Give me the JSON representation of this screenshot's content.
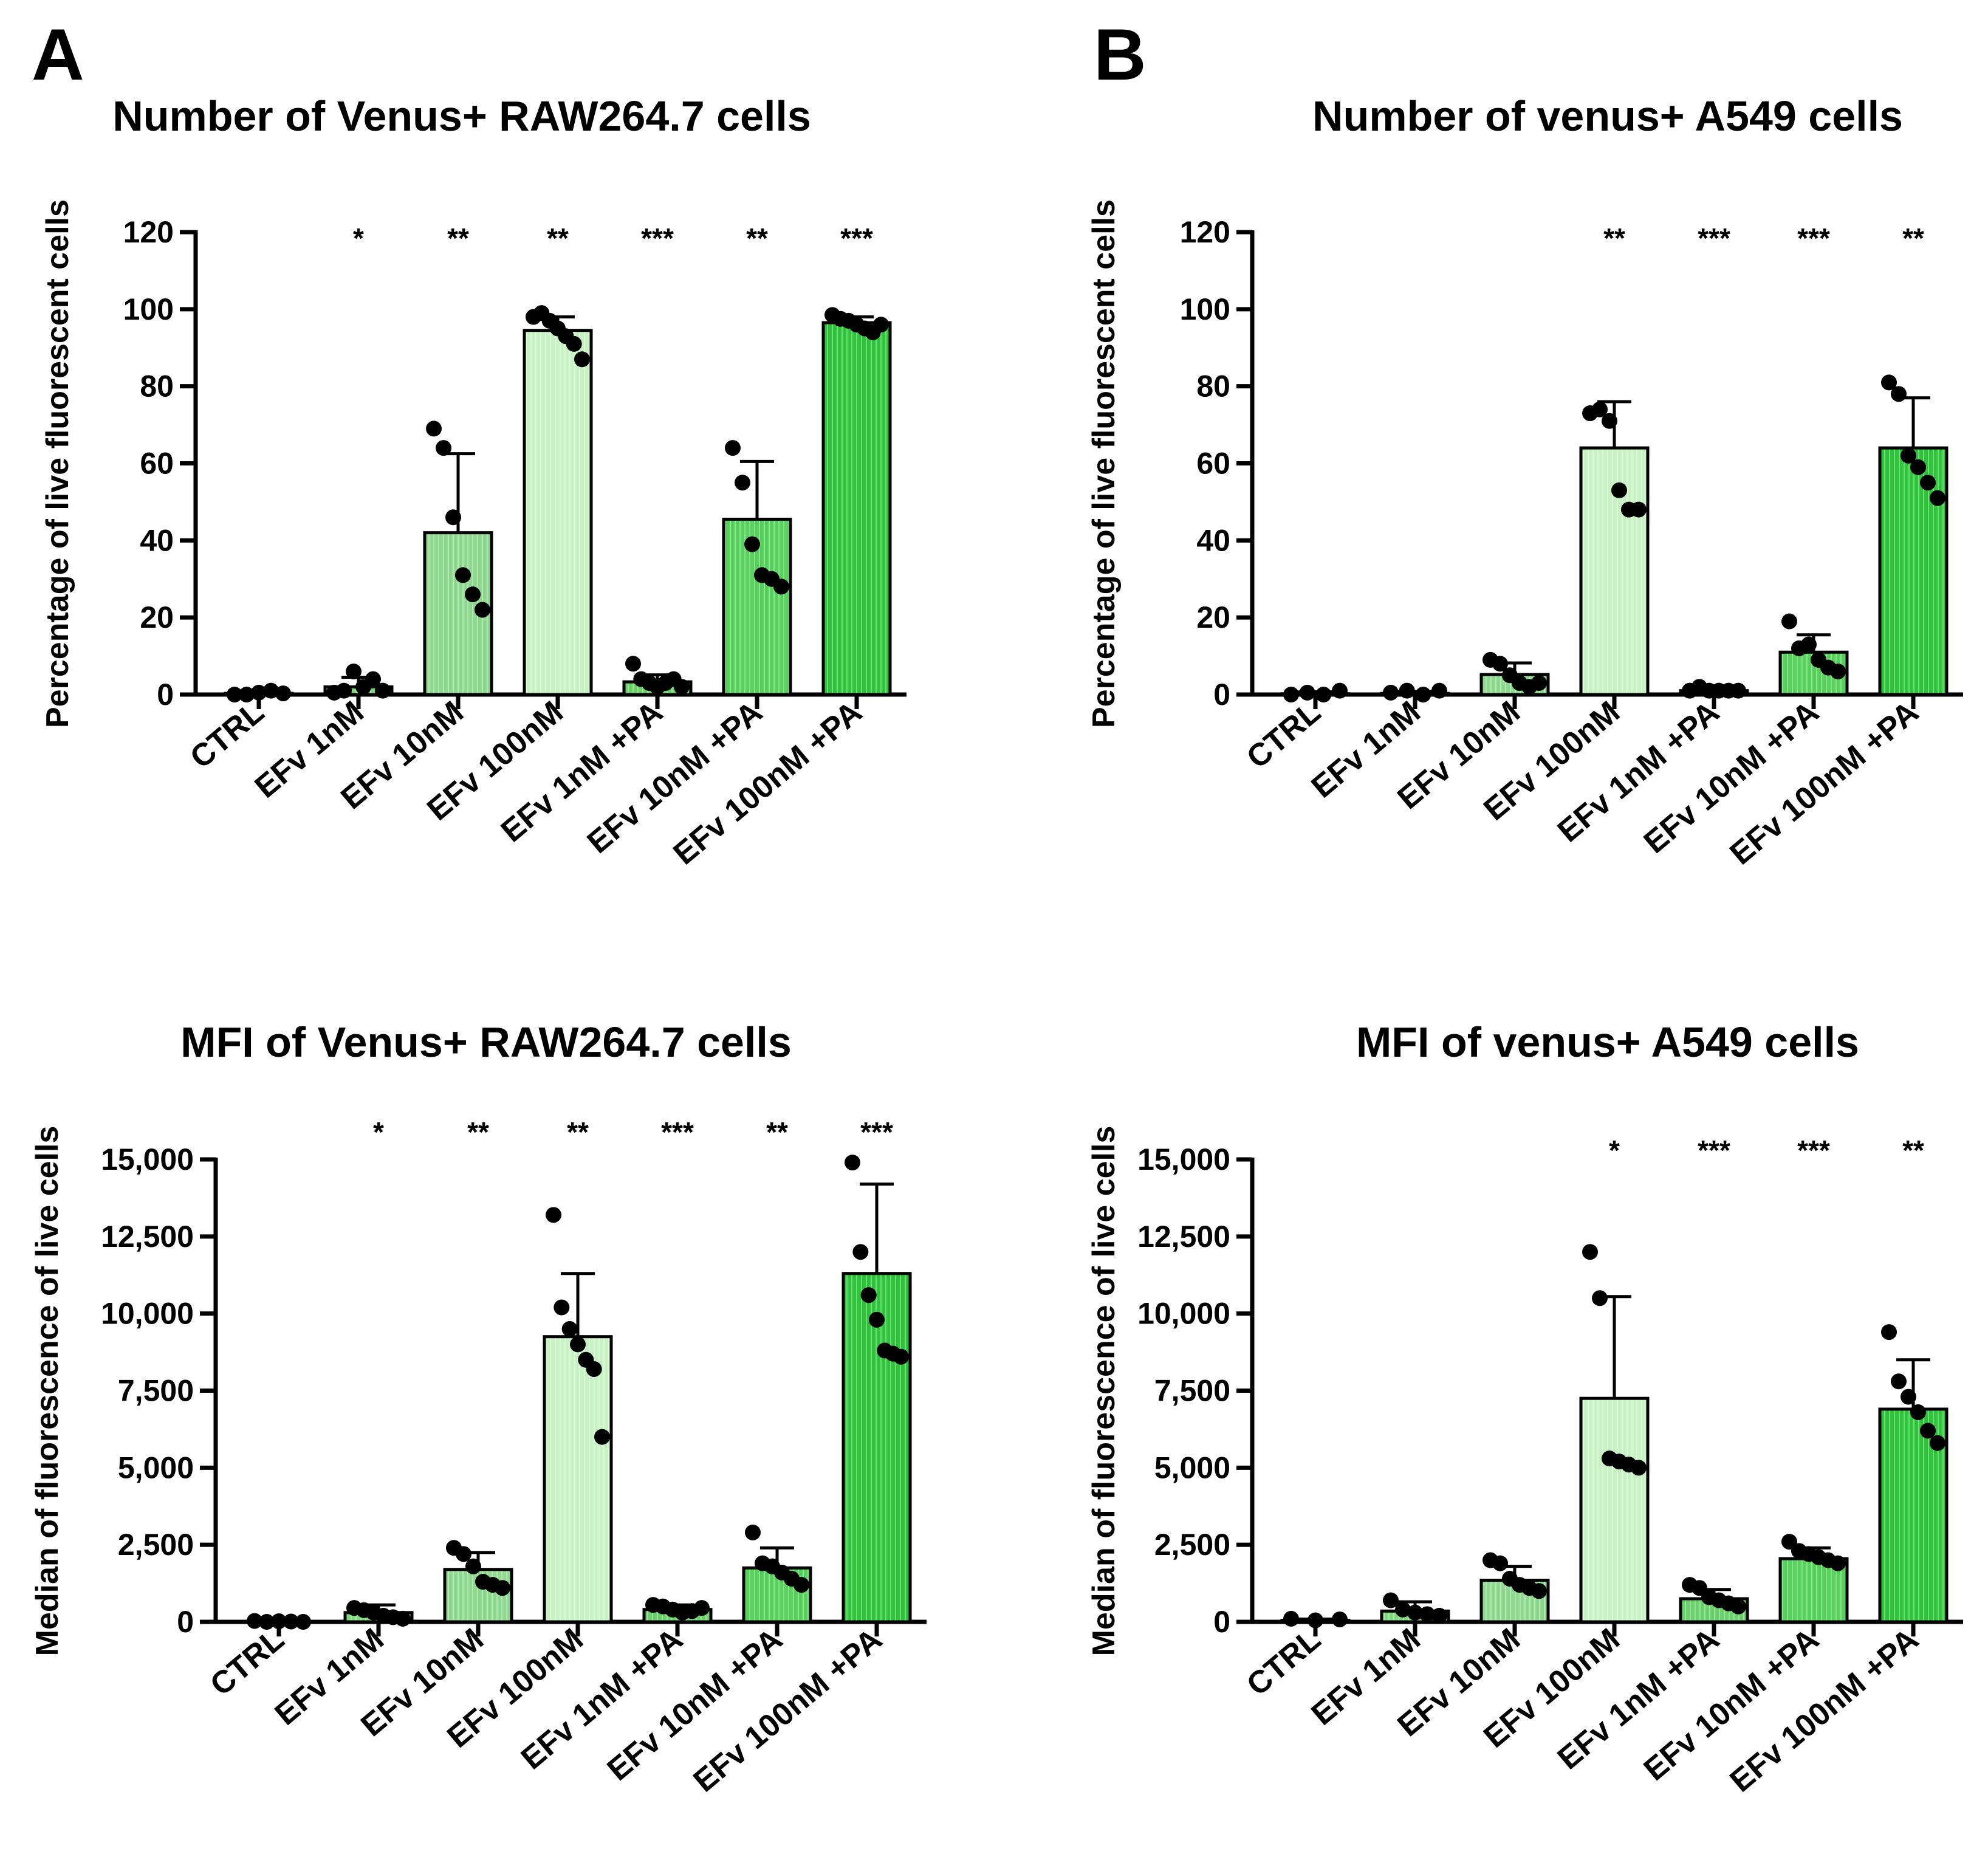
{
  "panels": [
    {
      "letter": "A"
    },
    {
      "letter": "B"
    }
  ],
  "colors": {
    "light": "#c9f2c4",
    "medium": "#8fd88f",
    "bright": "#55d05a",
    "dark": "#2ec43a",
    "axis": "#000000"
  },
  "chart_data": [
    {
      "type": "bar",
      "panel": "A",
      "title": "Number of Venus+ RAW264.7 cells",
      "ylabel": "Percentage of live fluorescent cells",
      "xlabel": "",
      "ylim": [
        0,
        120
      ],
      "yticks": [
        0,
        20,
        40,
        60,
        80,
        100,
        120
      ],
      "ytick_labels": [
        "0",
        "20",
        "40",
        "60",
        "80",
        "100",
        "120"
      ],
      "categories": [
        "CTRL",
        "EFv 1nM",
        "EFv 10nM",
        "EFv 100nM",
        "EFv 1nM +PA",
        "EFv 10nM +PA",
        "EFv 100nM +PA"
      ],
      "values": [
        0.3,
        2.0,
        42,
        94.5,
        3.3,
        45.5,
        96.5
      ],
      "error": [
        0.5,
        2.5,
        20.5,
        3.5,
        1.8,
        15,
        1.5
      ],
      "points": [
        [
          0,
          0,
          0.5,
          1,
          0.3
        ],
        [
          0.5,
          1,
          6,
          2,
          4,
          1
        ],
        [
          69,
          64,
          46,
          31,
          26,
          22
        ],
        [
          98,
          99,
          97,
          95,
          93,
          91,
          87
        ],
        [
          8,
          4,
          3,
          2,
          3,
          4,
          2
        ],
        [
          64,
          55,
          39,
          31,
          30,
          28
        ],
        [
          98.5,
          97.5,
          97,
          96,
          95,
          94,
          96
        ]
      ],
      "significance": [
        "",
        "*",
        "**",
        "**",
        "***",
        "**",
        "***"
      ],
      "fill_colors": [
        "#9ee09a",
        "#7fd87e",
        "#8fd88f",
        "#c9f2c4",
        "#69d06a",
        "#55d05a",
        "#2ec43a"
      ]
    },
    {
      "type": "bar",
      "panel": "B",
      "title": "Number of venus+ A549 cells",
      "ylabel": "Percentage of live fluorescent cells",
      "xlabel": "",
      "ylim": [
        0,
        120
      ],
      "yticks": [
        0,
        20,
        40,
        60,
        80,
        100,
        120
      ],
      "ytick_labels": [
        "0",
        "20",
        "40",
        "60",
        "80",
        "100",
        "120"
      ],
      "categories": [
        "CTRL",
        "EFv 1nM",
        "EFv 10nM",
        "EFv 100nM",
        "EFv 1nM +PA",
        "EFv 10nM +PA",
        "EFv 100nM +PA"
      ],
      "values": [
        0.2,
        0.3,
        5.2,
        64,
        1.0,
        11,
        64
      ],
      "error": [
        0.5,
        0.5,
        3,
        12,
        0.5,
        4.5,
        13
      ],
      "points": [
        [
          0,
          0.5,
          0,
          1
        ],
        [
          0.5,
          1,
          0,
          1
        ],
        [
          9,
          8,
          5,
          3,
          2,
          3
        ],
        [
          73,
          74,
          71,
          53,
          48,
          48
        ],
        [
          1,
          2,
          1,
          1,
          1,
          1
        ],
        [
          19,
          12,
          13,
          9,
          7,
          6
        ],
        [
          81,
          78,
          62,
          59,
          55,
          51
        ]
      ],
      "significance": [
        "",
        "",
        "",
        "**",
        "***",
        "***",
        "**"
      ],
      "fill_colors": [
        "#9ee09a",
        "#7fd87e",
        "#8fd88f",
        "#c9f2c4",
        "#69d06a",
        "#55d05a",
        "#2ec43a"
      ]
    },
    {
      "type": "bar",
      "panel": "A",
      "title": "MFI of Venus+ RAW264.7 cells",
      "ylabel": "Median of fluorescence of live cells",
      "xlabel": "",
      "ylim": [
        0,
        15000
      ],
      "yticks": [
        0,
        2500,
        5000,
        7500,
        10000,
        12500,
        15000
      ],
      "ytick_labels": [
        "0",
        "2,500",
        "5,000",
        "7,500",
        "10,000",
        "12,500",
        "15,000"
      ],
      "categories": [
        "CTRL",
        "EFv 1nM",
        "EFv 10nM",
        "EFv 100nM",
        "EFv 1nM +PA",
        "EFv 10nM +PA",
        "EFv 100nM +PA"
      ],
      "values": [
        0,
        300,
        1700,
        9250,
        400,
        1750,
        11300
      ],
      "error": [
        60,
        250,
        550,
        2050,
        150,
        650,
        2900
      ],
      "points": [
        [
          30,
          0,
          20,
          10,
          0
        ],
        [
          450,
          380,
          300,
          200,
          150,
          100
        ],
        [
          2400,
          2200,
          1800,
          1300,
          1200,
          1100
        ],
        [
          13200,
          10200,
          9500,
          9000,
          8500,
          8200,
          6000
        ],
        [
          550,
          500,
          400,
          300,
          350,
          450
        ],
        [
          2900,
          1900,
          1800,
          1600,
          1400,
          1200
        ],
        [
          14900,
          12000,
          10600,
          9800,
          8800,
          8700,
          8600
        ]
      ],
      "significance": [
        "",
        "*",
        "**",
        "**",
        "***",
        "**",
        "***"
      ],
      "fill_colors": [
        "#9ee09a",
        "#7fd87e",
        "#8fd88f",
        "#c9f2c4",
        "#69d06a",
        "#55d05a",
        "#2ec43a"
      ]
    },
    {
      "type": "bar",
      "panel": "B",
      "title": "MFI of venus+ A549 cells",
      "ylabel": "Median of fluorescence of live cells",
      "xlabel": "",
      "ylim": [
        0,
        15000
      ],
      "yticks": [
        0,
        2500,
        5000,
        7500,
        10000,
        12500,
        15000
      ],
      "ytick_labels": [
        "0",
        "2,500",
        "5,000",
        "7,500",
        "10,000",
        "12,500",
        "15,000"
      ],
      "categories": [
        "CTRL",
        "EFv 1nM",
        "EFv 10nM",
        "EFv 100nM",
        "EFv 1nM +PA",
        "EFv 10nM +PA",
        "EFv 100nM +PA"
      ],
      "values": [
        50,
        350,
        1350,
        7250,
        750,
        2050,
        6900
      ],
      "error": [
        40,
        300,
        450,
        3300,
        300,
        350,
        1600
      ],
      "points": [
        [
          100,
          50,
          80
        ],
        [
          700,
          400,
          300,
          250,
          200
        ],
        [
          2000,
          1900,
          1400,
          1200,
          1100,
          1000
        ],
        [
          12000,
          10500,
          5300,
          5200,
          5100,
          5000
        ],
        [
          1200,
          1100,
          800,
          700,
          600,
          500
        ],
        [
          2600,
          2300,
          2200,
          2100,
          2000,
          1900
        ],
        [
          9400,
          7800,
          7300,
          6800,
          6200,
          5800
        ]
      ],
      "significance": [
        "",
        "",
        "",
        "*",
        "***",
        "***",
        "**"
      ],
      "fill_colors": [
        "#9ee09a",
        "#7fd87e",
        "#8fd88f",
        "#c9f2c4",
        "#69d06a",
        "#55d05a",
        "#2ec43a"
      ]
    }
  ]
}
